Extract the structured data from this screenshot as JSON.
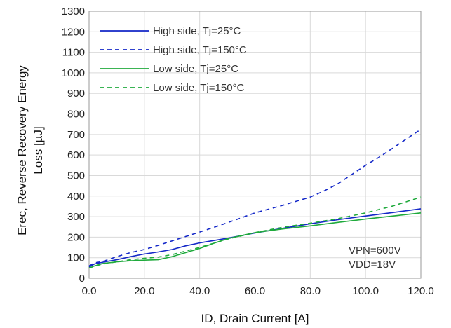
{
  "chart_data": {
    "type": "line",
    "xlabel": "ID, Drain Current [A]",
    "ylabel_lines": [
      "Erec, Reverse Recovery Energy",
      "Loss [µJ]"
    ],
    "xlim": [
      0,
      120
    ],
    "ylim": [
      0,
      1300
    ],
    "x_ticks": [
      0,
      20,
      40,
      60,
      80,
      100,
      120
    ],
    "x_tick_labels": [
      "0.0",
      "20.0",
      "40.0",
      "60.0",
      "80.0",
      "100.0",
      "120.0"
    ],
    "y_ticks": [
      0,
      100,
      200,
      300,
      400,
      500,
      600,
      700,
      800,
      900,
      1000,
      1100,
      1200,
      1300
    ],
    "y_tick_labels": [
      "0",
      "100",
      "200",
      "300",
      "400",
      "500",
      "600",
      "700",
      "800",
      "900",
      "1000",
      "1100",
      "1200",
      "1300"
    ],
    "grid": true,
    "legend_position": "top-left",
    "annotations": [
      "VPN=600V",
      "VDD=18V"
    ],
    "series": [
      {
        "name": "High side, Tj=25°C",
        "color": "#1428c8",
        "dash": "solid",
        "x": [
          0,
          2,
          5,
          10,
          15,
          20,
          25,
          30,
          35,
          40,
          50,
          60,
          70,
          80,
          90,
          100,
          110,
          120
        ],
        "y": [
          55,
          70,
          78,
          90,
          105,
          118,
          128,
          140,
          158,
          172,
          195,
          220,
          243,
          265,
          285,
          303,
          320,
          338
        ]
      },
      {
        "name": "High side, Tj=150°C",
        "color": "#1428c8",
        "dash": "dashed",
        "x": [
          0,
          2,
          5,
          10,
          15,
          20,
          25,
          30,
          40,
          50,
          60,
          70,
          80,
          85,
          90,
          95,
          100,
          105,
          110,
          115,
          120
        ],
        "y": [
          60,
          75,
          82,
          105,
          125,
          140,
          160,
          182,
          225,
          270,
          318,
          355,
          395,
          425,
          460,
          505,
          550,
          590,
          635,
          680,
          725
        ]
      },
      {
        "name": "Low side, Tj=25°C",
        "color": "#1faa3c",
        "dash": "solid",
        "x": [
          0,
          2,
          5,
          10,
          15,
          20,
          25,
          30,
          35,
          40,
          45,
          50,
          60,
          70,
          80,
          90,
          100,
          110,
          120
        ],
        "y": [
          50,
          60,
          72,
          80,
          85,
          88,
          90,
          105,
          125,
          145,
          170,
          192,
          222,
          240,
          255,
          272,
          288,
          303,
          318
        ]
      },
      {
        "name": "Low side, Tj=150°C",
        "color": "#1faa3c",
        "dash": "dashed",
        "x": [
          0,
          2,
          5,
          10,
          15,
          20,
          25,
          30,
          40,
          50,
          60,
          70,
          80,
          90,
          100,
          110,
          120
        ],
        "y": [
          50,
          58,
          70,
          80,
          90,
          97,
          103,
          115,
          150,
          190,
          222,
          248,
          268,
          290,
          318,
          352,
          395
        ]
      }
    ]
  }
}
